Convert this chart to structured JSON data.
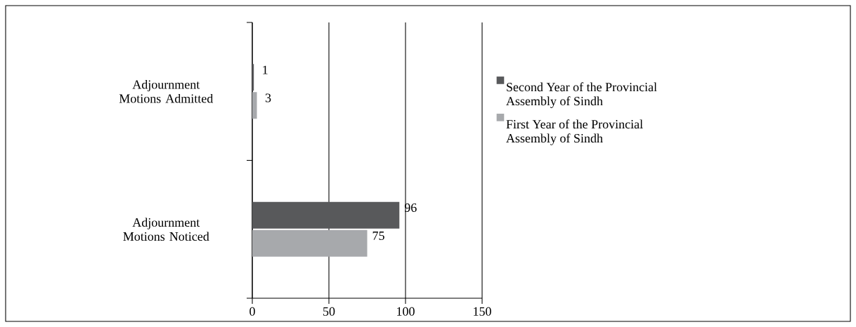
{
  "chart_data": {
    "type": "bar",
    "orientation": "horizontal",
    "categories": [
      "Adjournment Motions Admitted",
      "Adjournment Motions Noticed"
    ],
    "series": [
      {
        "name": "Second Year of the Provincial Assembly of Sindh",
        "color": "#58595b",
        "values": [
          1,
          96
        ]
      },
      {
        "name": "First Year of the Provincial Assembly of Sindh",
        "color": "#a7a9ac",
        "values": [
          3,
          75
        ]
      }
    ],
    "xlim": [
      0,
      150
    ],
    "xticks": [
      0,
      50,
      100,
      150
    ],
    "grid": "x",
    "data_labels": true,
    "legend": "right"
  }
}
